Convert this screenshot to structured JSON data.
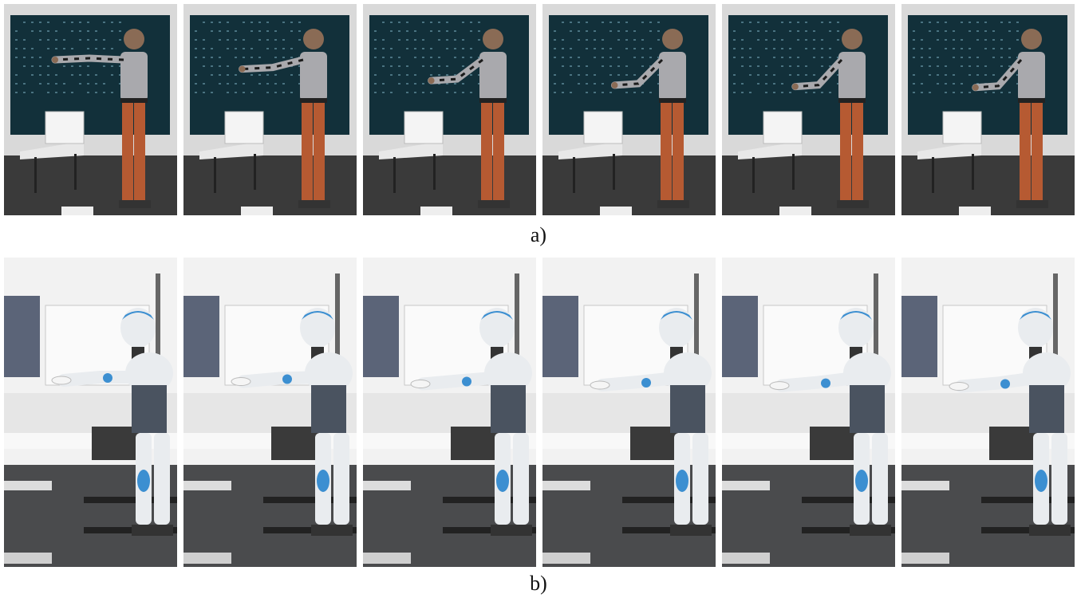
{
  "figure": {
    "panel_a": {
      "caption": "a)",
      "frames": [
        {
          "arm_level": 1.0
        },
        {
          "arm_level": 0.8
        },
        {
          "arm_level": 0.55
        },
        {
          "arm_level": 0.45
        },
        {
          "arm_level": 0.42
        },
        {
          "arm_level": 0.4
        }
      ]
    },
    "panel_b": {
      "caption": "b)",
      "frames": [
        {
          "arm_level": 1.0
        },
        {
          "arm_level": 0.95
        },
        {
          "arm_level": 0.85
        },
        {
          "arm_level": 0.8
        },
        {
          "arm_level": 0.78
        },
        {
          "arm_level": 0.75
        }
      ]
    },
    "colors": {
      "screen": "#12303a",
      "wall": "#e4e4e4",
      "floor_a": "#3a3a3a",
      "shirt": "#a9a9ad",
      "pants": "#b65a32",
      "robot_white": "#e9ecef",
      "robot_blue": "#3c8fd1",
      "floor_b": "#4a4b4d"
    }
  }
}
